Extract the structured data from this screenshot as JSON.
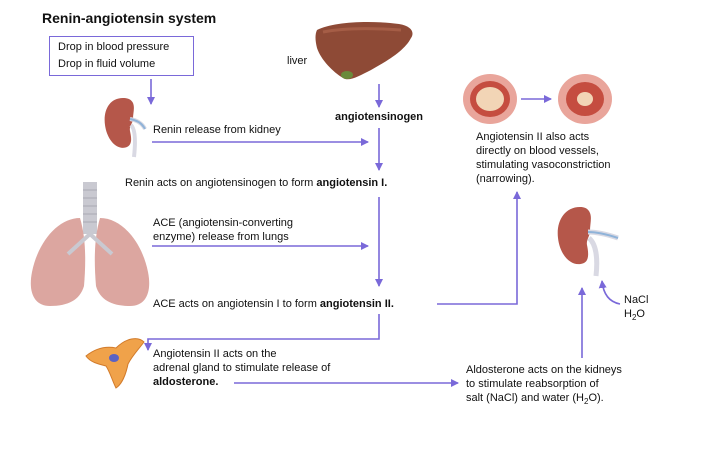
{
  "title": "Renin-angiotensin system",
  "trigger": {
    "line1": "Drop in blood pressure",
    "line2": "Drop in fluid volume"
  },
  "labels": {
    "liver": "liver",
    "angiotensinogen": "angiotensinogen",
    "renin_release": "Renin release from kidney",
    "renin_acts_prefix": "Renin acts on angiotensinogen to form ",
    "angiotensin_1": "angiotensin I.",
    "ace_release_1": "ACE (angiotensin-converting",
    "ace_release_2": "enzyme) release from lungs",
    "ace_acts_prefix": "ACE acts on angiotensin I to form ",
    "angiotensin_2": "angiotensin II.",
    "adrenal_1": "Angiotensin II acts on the",
    "adrenal_2": "adrenal gland to stimulate release of",
    "aldosterone": "aldosterone.",
    "vaso_1": "Angiotensin II also acts",
    "vaso_2": "directly on blood vessels,",
    "vaso_3": "stimulating vasoconstriction",
    "vaso_4": "(narrowing).",
    "aldo_kidney_1": "Aldosterone acts on the kidneys",
    "aldo_kidney_2": "to stimulate reabsorption of",
    "aldo_kidney_3": "salt (NaCl) and water (H",
    "aldo_kidney_3_sub": "2",
    "aldo_kidney_3_end": "O).",
    "nacl": "NaCl",
    "h2o_h": "H",
    "h2o_sub": "2",
    "h2o_o": "O"
  },
  "colors": {
    "arrow": "#7a69d9",
    "organ_kidney": "#b5574a",
    "organ_liver": "#8e4a36",
    "organ_lung": "#dca6a0",
    "adrenal": "#f0a24a",
    "vessel_outer": "#e9a59b",
    "vessel_inner": "#c54d40"
  },
  "icons": [
    "kidney-icon",
    "liver-icon",
    "lungs-icon",
    "adrenal-gland-icon",
    "blood-vessel-icon"
  ]
}
